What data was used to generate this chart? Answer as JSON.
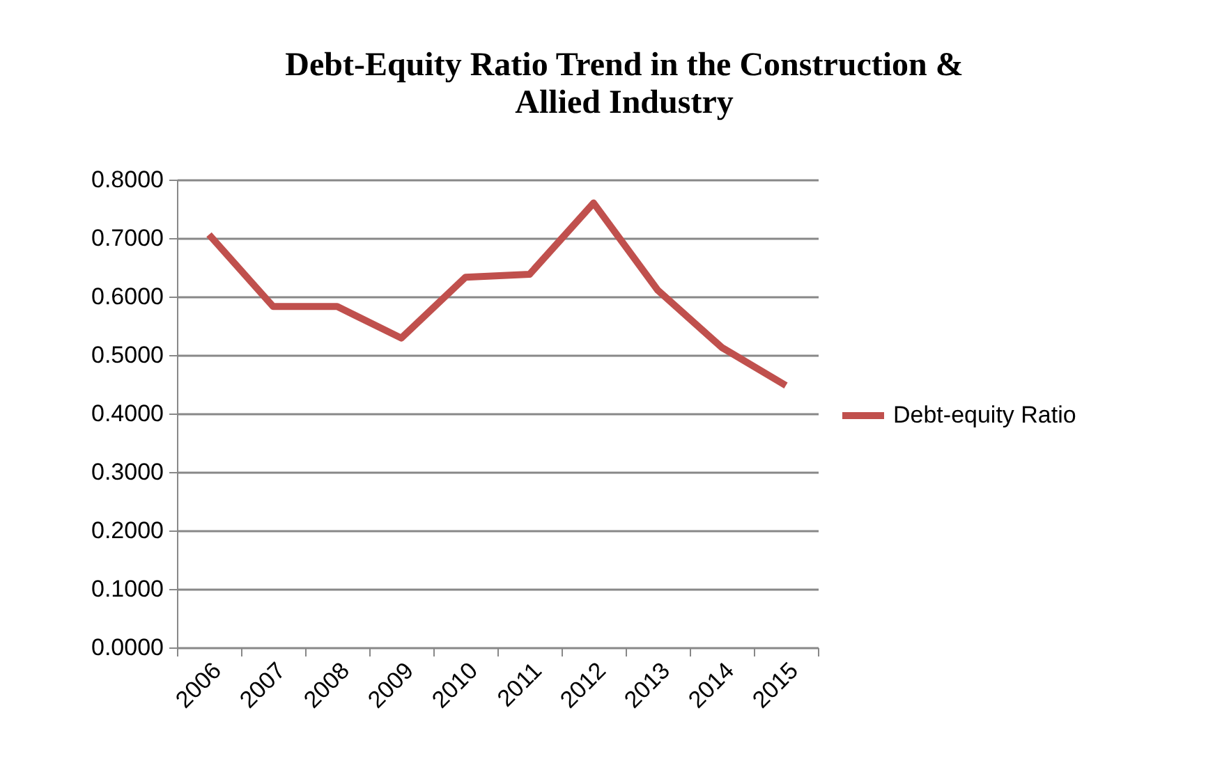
{
  "chart_data": {
    "type": "line",
    "title": [
      "Debt-Equity Ratio Trend in the Construction &",
      "Allied Industry"
    ],
    "categories": [
      "2006",
      "2007",
      "2008",
      "2009",
      "2010",
      "2011",
      "2012",
      "2013",
      "2014",
      "2015"
    ],
    "series": [
      {
        "name": "Debt-equity Ratio",
        "color": "#c0504d",
        "values": [
          0.706,
          0.583,
          0.583,
          0.529,
          0.633,
          0.638,
          0.76,
          0.611,
          0.513,
          0.448
        ]
      }
    ],
    "ylim": [
      0,
      0.8
    ],
    "yticks": [
      {
        "value": 0,
        "label": "0.0000"
      },
      {
        "value": 0.1,
        "label": "0.1000"
      },
      {
        "value": 0.2,
        "label": "0.2000"
      },
      {
        "value": 0.3,
        "label": "0.3000"
      },
      {
        "value": 0.4,
        "label": "0.4000"
      },
      {
        "value": 0.5,
        "label": "0.5000"
      },
      {
        "value": 0.6,
        "label": "0.6000"
      },
      {
        "value": 0.7,
        "label": "0.7000"
      },
      {
        "value": 0.8,
        "label": "0.8000"
      }
    ],
    "grid": "y",
    "legend": "right",
    "marker": "none",
    "line_style": "solid"
  }
}
